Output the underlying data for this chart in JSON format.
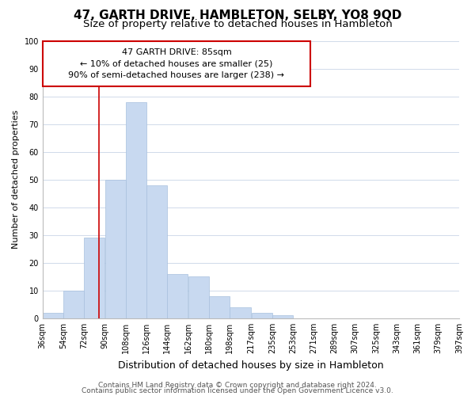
{
  "title": "47, GARTH DRIVE, HAMBLETON, SELBY, YO8 9QD",
  "subtitle": "Size of property relative to detached houses in Hambleton",
  "xlabel": "Distribution of detached houses by size in Hambleton",
  "ylabel": "Number of detached properties",
  "bar_color": "#c8d9f0",
  "bar_edge_color": "#a8c0de",
  "bin_edges": [
    36,
    54,
    72,
    90,
    108,
    126,
    144,
    162,
    180,
    198,
    217,
    235,
    253,
    271,
    289,
    307,
    325,
    343,
    361,
    379,
    397
  ],
  "bar_heights": [
    2,
    10,
    29,
    50,
    78,
    48,
    16,
    15,
    8,
    4,
    2,
    1,
    0,
    0,
    0,
    0,
    0,
    0,
    0,
    0
  ],
  "tick_labels": [
    "36sqm",
    "54sqm",
    "72sqm",
    "90sqm",
    "108sqm",
    "126sqm",
    "144sqm",
    "162sqm",
    "180sqm",
    "198sqm",
    "217sqm",
    "235sqm",
    "253sqm",
    "271sqm",
    "289sqm",
    "307sqm",
    "325sqm",
    "343sqm",
    "361sqm",
    "379sqm",
    "397sqm"
  ],
  "vline_x": 85,
  "vline_color": "#cc0000",
  "ann_line1": "47 GARTH DRIVE: 85sqm",
  "ann_line2": "← 10% of detached houses are smaller (25)",
  "ann_line3": "90% of semi-detached houses are larger (238) →",
  "ylim": [
    0,
    100
  ],
  "yticks": [
    0,
    10,
    20,
    30,
    40,
    50,
    60,
    70,
    80,
    90,
    100
  ],
  "background_color": "#ffffff",
  "grid_color": "#d0daea",
  "footer_line1": "Contains HM Land Registry data © Crown copyright and database right 2024.",
  "footer_line2": "Contains public sector information licensed under the Open Government Licence v3.0.",
  "title_fontsize": 11,
  "subtitle_fontsize": 9.5,
  "xlabel_fontsize": 9,
  "ylabel_fontsize": 8,
  "tick_fontsize": 7,
  "ann_fontsize": 8,
  "footer_fontsize": 6.5
}
